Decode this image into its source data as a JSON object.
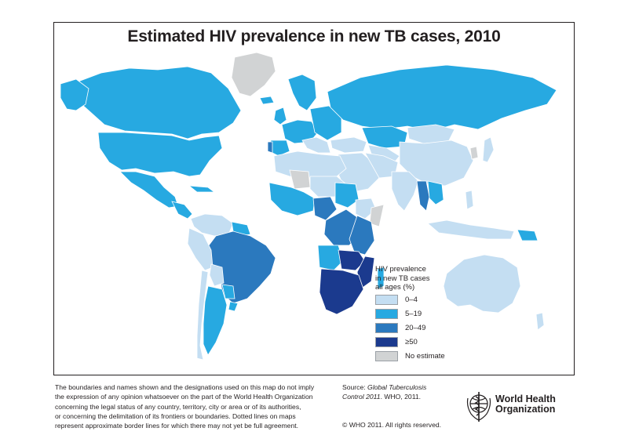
{
  "title": "Estimated HIV prevalence in new TB cases, 2010",
  "legend": {
    "title_lines": [
      "HIV prevalence",
      "in new TB cases",
      "all ages (%)"
    ],
    "items": [
      {
        "label": "0–4",
        "color": "#c4def2"
      },
      {
        "label": "5–19",
        "color": "#27a9e1"
      },
      {
        "label": "20–49",
        "color": "#2b79be"
      },
      {
        "label": "≥50",
        "color": "#1b3a8e"
      },
      {
        "label": "No estimate",
        "color": "#d1d3d4"
      }
    ]
  },
  "colors": {
    "ocean": "#ffffff",
    "border": "#ffffff",
    "outline": "#231f20"
  },
  "disclaimer_lines": [
    "The boundaries and names shown and the designations used on this map do not imply",
    "the expression of any opinion whatsoever on the part of the World Health Organization",
    "concerning the legal status of any country, territory, city or area or of its authorities,",
    "or concerning the delimitation of its frontiers or boundaries. Dotted lines on maps",
    "represent approximate border lines for which there may not yet be full agreement."
  ],
  "source": {
    "prefix": "Source: ",
    "title_italic": "Global Tuberculosis",
    "line2_italic": "Control 2011",
    "line2_rest": ". WHO, 2011."
  },
  "copyright": "© WHO 2011. All rights reserved.",
  "organization": {
    "line1": "World Health",
    "line2": "Organization"
  }
}
